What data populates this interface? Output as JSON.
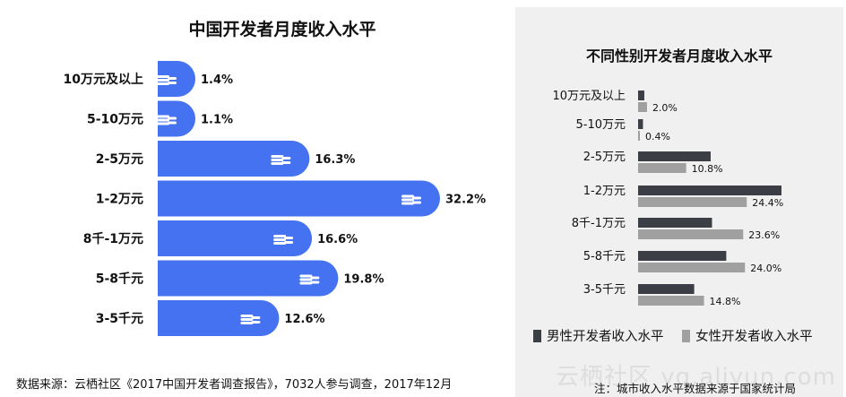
{
  "chart_data": [
    {
      "type": "bar",
      "orientation": "horizontal",
      "title": "中国开发者月度收入水平",
      "categories": [
        "10万元及以上",
        "5-10万元",
        "2-5万元",
        "1-2万元",
        "8千-1万元",
        "5-8千元",
        "3-5千元"
      ],
      "values": [
        1.4,
        1.1,
        16.3,
        32.2,
        16.6,
        19.8,
        12.6
      ],
      "value_labels": [
        "1.4%",
        "1.1%",
        "16.3%",
        "32.2%",
        "16.6%",
        "19.8%",
        "12.6%"
      ],
      "color": "#4472f0",
      "grid": false
    },
    {
      "type": "bar",
      "orientation": "horizontal",
      "title": "不同性别开发者月度收入水平",
      "categories": [
        "10万元及以上",
        "5-10万元",
        "2-5万元",
        "1-2万元",
        "8千-1万元",
        "5-8千元",
        "3-5千元"
      ],
      "series": [
        {
          "name": "男性开发者收入水平",
          "values": [
            1.4,
            1.1,
            16.3,
            32.2,
            16.6,
            19.8,
            12.6
          ],
          "color": "#3b3f45"
        },
        {
          "name": "女性开发者收入水平",
          "values": [
            2.0,
            0.4,
            10.8,
            24.4,
            23.6,
            24.0,
            14.8
          ],
          "value_labels": [
            "2.0%",
            "0.4%",
            "10.8%",
            "24.4%",
            "23.6%",
            "24.0%",
            "14.8%"
          ],
          "color": "#a0a0a0"
        }
      ],
      "legend_position": "bottom",
      "grid": false
    }
  ],
  "source_note": "数据来源：云栖社区《2017中国开发者调查报告》，7032人参与调查，2017年12月",
  "right_note": "注：城市收入水平数据来源于国家统计局",
  "watermark": "云栖社区 yq.aliyun.com"
}
